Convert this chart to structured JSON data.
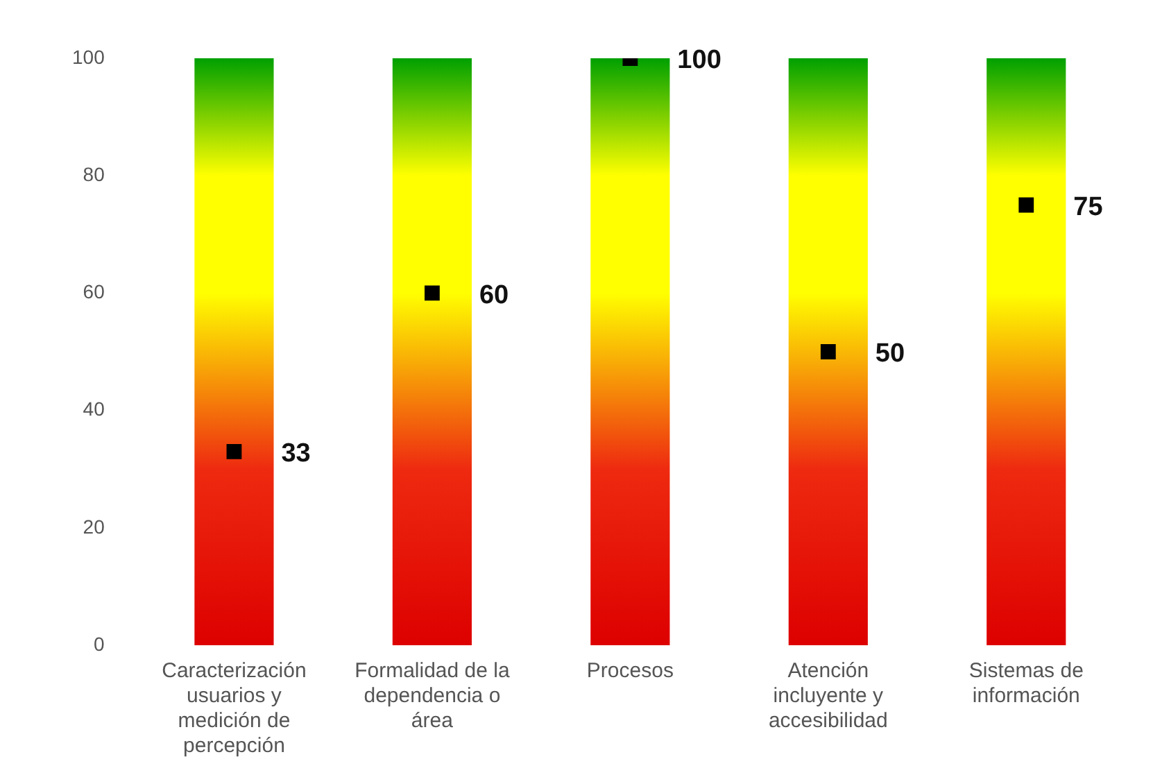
{
  "chart_data": {
    "type": "bar",
    "categories": [
      "Caracterización usuarios y medición de percepción",
      "Formalidad de la dependencia o área",
      "Procesos",
      "Atención incluyente y accesibilidad",
      "Sistemas de información"
    ],
    "series": [
      {
        "color": "#ffff00",
        "values": [
          100,
          100,
          100,
          100,
          100
        ]
      },
      {
        "type": "scatter",
        "color": "#000000",
        "values": [
          33,
          60,
          100,
          50,
          75
        ],
        "data_labels": true
      }
    ],
    "ylim": [
      0,
      100
    ],
    "yticks": [
      0,
      20,
      40,
      60,
      80,
      100
    ],
    "grid": false,
    "legend": false
  }
}
